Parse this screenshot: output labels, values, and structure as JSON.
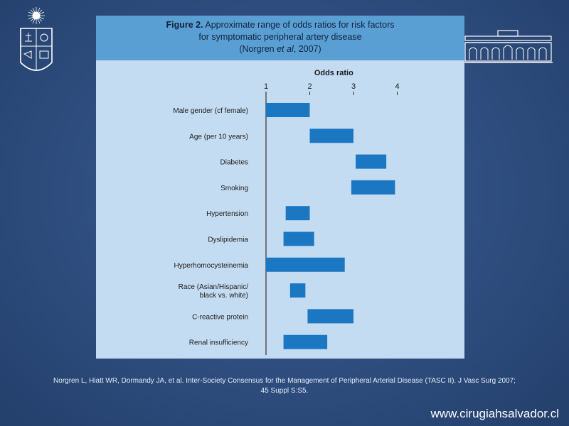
{
  "figure": {
    "title_prefix": "Figure 2.",
    "title_rest": " Approximate range of odds ratios for risk factors",
    "title_line2": "for symptomatic peripheral artery disease",
    "title_line3_pre": "(Norgren ",
    "title_line3_em": "et al",
    "title_line3_post": ", 2007)"
  },
  "chart_data": {
    "type": "bar",
    "orientation": "horizontal",
    "axis_title": "Odds ratio",
    "xlim": [
      1,
      4
    ],
    "ticks": [
      1,
      2,
      3,
      4
    ],
    "tick_labels": [
      "1",
      "2",
      "3",
      "4"
    ],
    "bar_color": "#1c77c3",
    "categories": [
      "Male gender (cf female)",
      "Age (per 10 years)",
      "Diabetes",
      "Smoking",
      "Hypertension",
      "Dyslipidemia",
      "Hyperhomocysteinemia",
      [
        "Race (Asian/Hispanic/",
        "black vs. white)"
      ],
      "C-reactive protein",
      "Renal insufficiency"
    ],
    "ranges": [
      [
        1.0,
        2.0
      ],
      [
        2.0,
        3.0
      ],
      [
        3.05,
        3.75
      ],
      [
        2.95,
        3.95
      ],
      [
        1.45,
        2.0
      ],
      [
        1.4,
        2.1
      ],
      [
        1.0,
        2.8
      ],
      [
        1.55,
        1.9
      ],
      [
        1.95,
        3.0
      ],
      [
        1.4,
        2.4
      ]
    ]
  },
  "citation": "Norgren L, Hiatt WR, Dormandy JA, et al. Inter-Society Consensus for the Management of Peripheral Arterial Disease (TASC II). J Vasc Surg 2007; 45 Suppl S:S5.",
  "website": "www.cirugiahsalvador.cl"
}
